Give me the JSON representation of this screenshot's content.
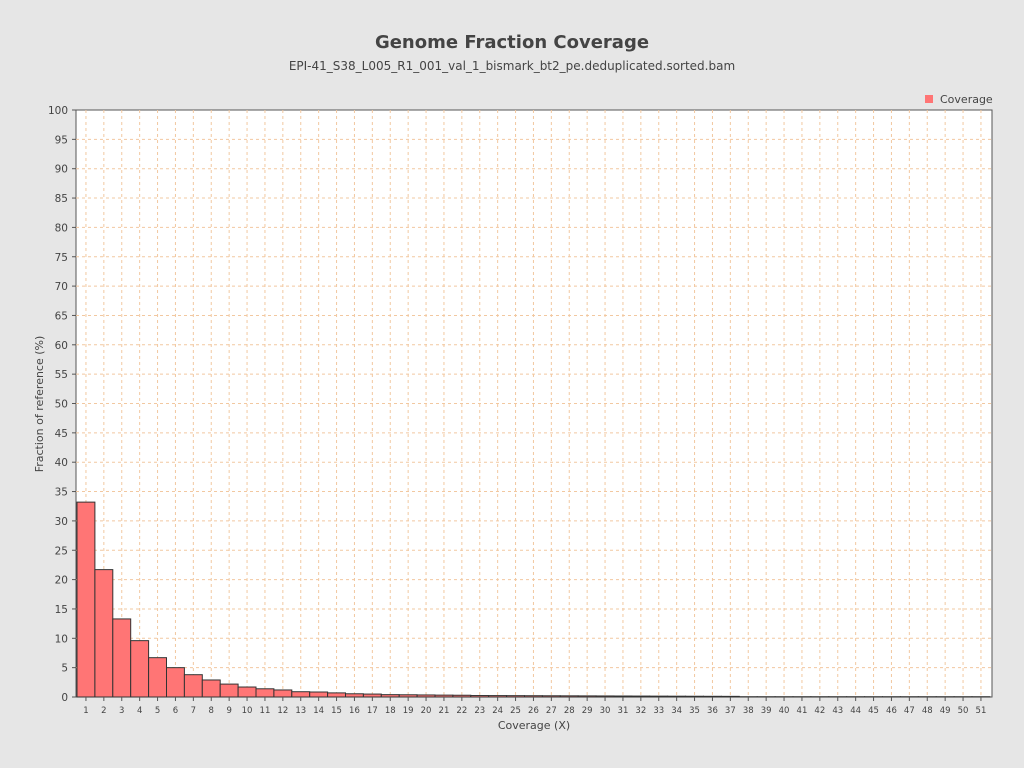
{
  "chart_data": {
    "type": "bar",
    "title": "Genome Fraction Coverage",
    "subtitle": "EPI-41_S38_L005_R1_001_val_1_bismark_bt2_pe.deduplicated.sorted.bam",
    "xlabel": "Coverage (X)",
    "ylabel": "Fraction of reference (%)",
    "ylim": [
      0,
      100
    ],
    "yticks": [
      0,
      5,
      10,
      15,
      20,
      25,
      30,
      35,
      40,
      45,
      50,
      55,
      60,
      65,
      70,
      75,
      80,
      85,
      90,
      95,
      100
    ],
    "categories": [
      "1",
      "2",
      "3",
      "4",
      "5",
      "6",
      "7",
      "8",
      "9",
      "10",
      "11",
      "12",
      "13",
      "14",
      "15",
      "16",
      "17",
      "18",
      "19",
      "20",
      "21",
      "22",
      "23",
      "24",
      "25",
      "26",
      "27",
      "28",
      "29",
      "30",
      "31",
      "32",
      "33",
      "34",
      "35",
      "36",
      "37",
      "38",
      "39",
      "40",
      "41",
      "42",
      "43",
      "44",
      "45",
      "46",
      "47",
      "48",
      "49",
      "50",
      "51"
    ],
    "series": [
      {
        "name": "Coverage",
        "color": "#ff7575",
        "values": [
          33.2,
          21.7,
          13.3,
          9.6,
          6.7,
          5.0,
          3.8,
          2.9,
          2.2,
          1.7,
          1.4,
          1.2,
          0.9,
          0.85,
          0.7,
          0.55,
          0.5,
          0.4,
          0.38,
          0.35,
          0.32,
          0.3,
          0.25,
          0.24,
          0.23,
          0.22,
          0.21,
          0.2,
          0.19,
          0.18,
          0.17,
          0.16,
          0.15,
          0.14,
          0.13,
          0.12,
          0.11,
          0.05,
          0.05,
          0.05,
          0.05,
          0.05,
          0.05,
          0.05,
          0.05,
          0.05,
          0.05,
          0.05,
          0.05,
          0.05,
          0.05
        ]
      }
    ],
    "legend": {
      "position": "top-right"
    },
    "grid": true,
    "colors": {
      "background": "#e6e6e6",
      "plot_background": "#ffffff",
      "gridline": "#f2c8a0",
      "bar_outline": "#333333"
    }
  }
}
